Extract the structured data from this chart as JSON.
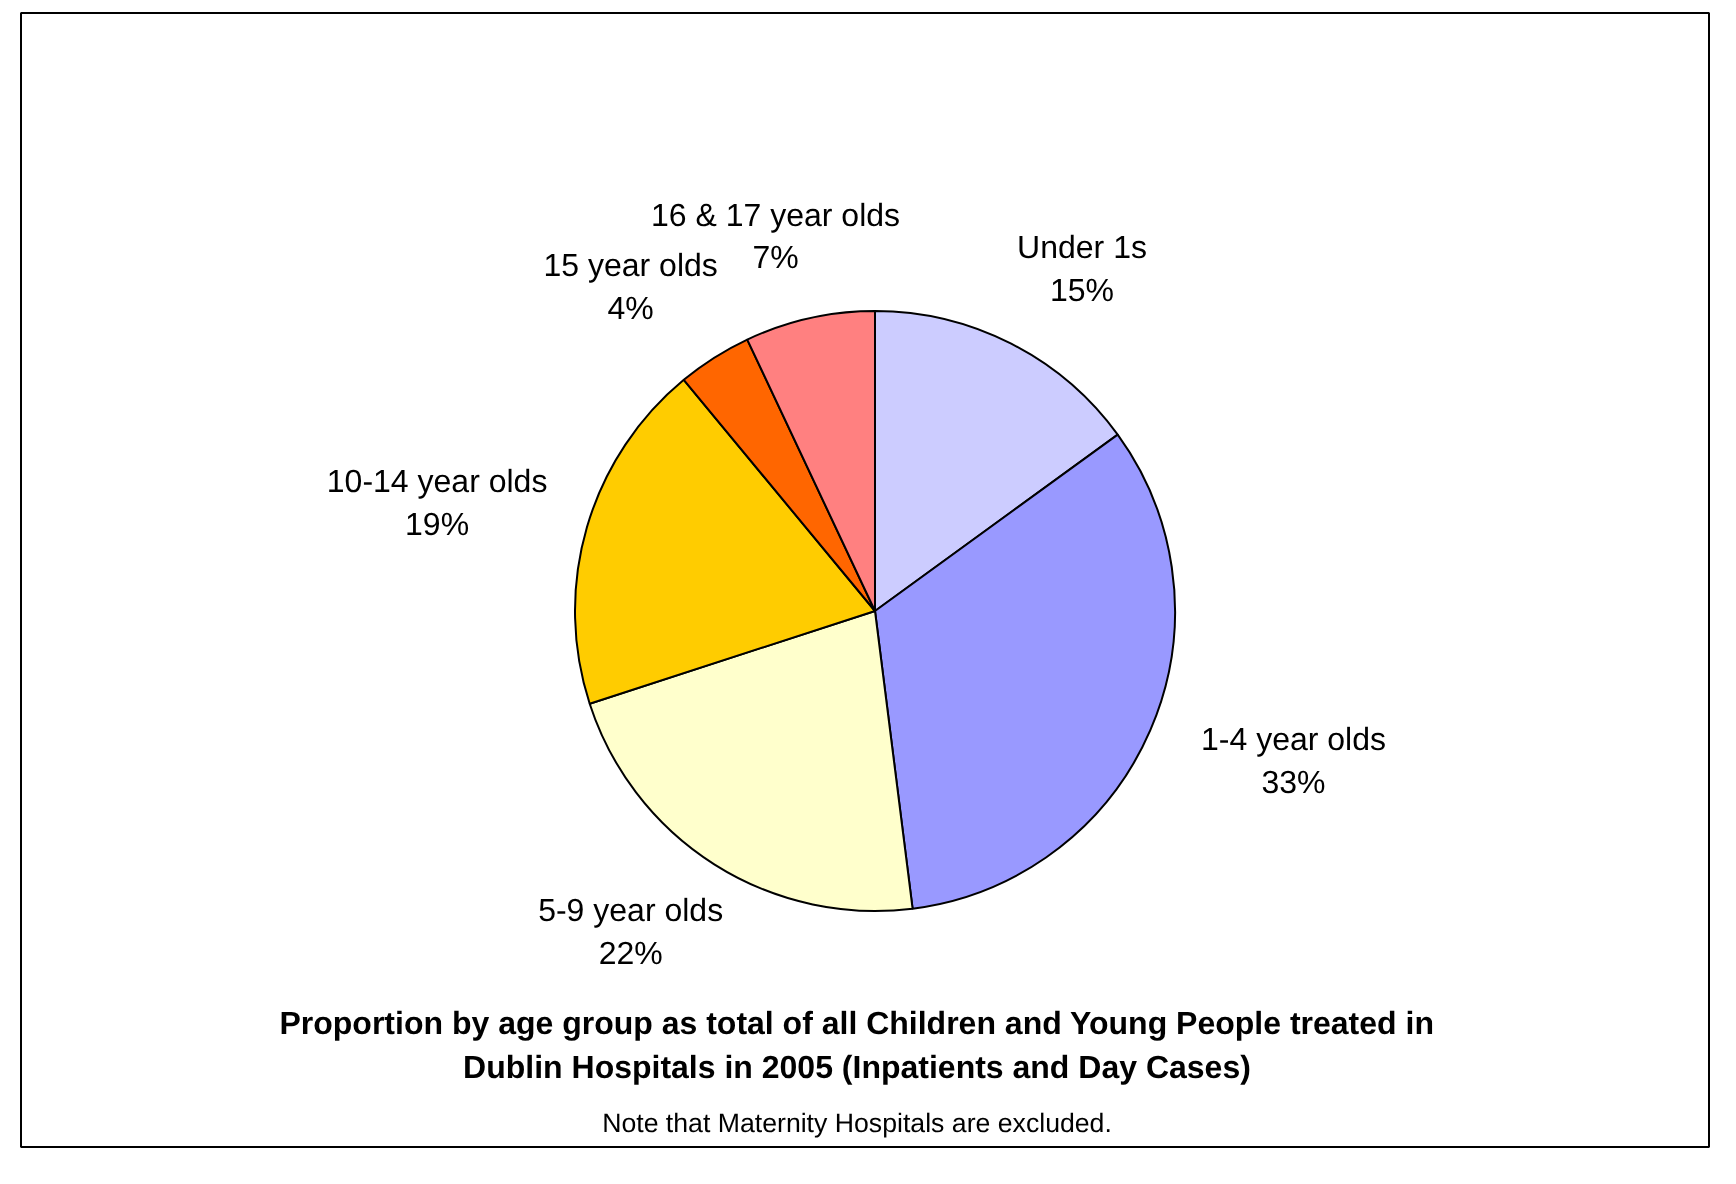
{
  "chart_data": {
    "type": "pie",
    "title": "Proportion by age group as total of all Children and Young People treated in Dublin Hospitals in 2005 (Inpatients and Day Cases)",
    "categories": [
      "Under 1s",
      "1-4 year olds",
      "5-9 year olds",
      "10-14 year olds",
      "15 year olds",
      "16 & 17 year olds"
    ],
    "values": [
      15,
      33,
      22,
      19,
      4,
      7
    ],
    "value_labels": [
      "15%",
      "33%",
      "22%",
      "19%",
      "4%",
      "7%"
    ],
    "colors": [
      "#ccccff",
      "#9999ff",
      "#ffffcc",
      "#ffcc00",
      "#ff6600",
      "#ff8080"
    ],
    "annotations": [
      "Note that Maternity Hospitals are excluded."
    ]
  }
}
